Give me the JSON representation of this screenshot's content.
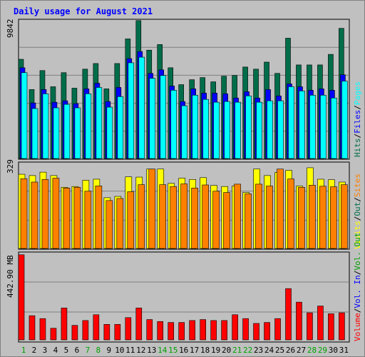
{
  "title": "Daily usage for August 2021",
  "colors": {
    "background": "#c0c0c0",
    "title": "#0000ff",
    "hits": "#006d4a",
    "files": "#0000ff",
    "pages": "#00ffff",
    "visits": "#ffff00",
    "sites": "#ff8000",
    "volume": "#ff0000",
    "volume_in": "#0000ff",
    "volume_out": "#00a000",
    "weekend_day": "#00a000",
    "weekday": "#000000",
    "legend_sep": "#000000"
  },
  "chart_data": [
    {
      "type": "bar",
      "title": "Daily usage for August 2021",
      "categories": [
        "1",
        "2",
        "3",
        "4",
        "5",
        "6",
        "7",
        "8",
        "9",
        "10",
        "11",
        "12",
        "13",
        "14",
        "15",
        "16",
        "17",
        "18",
        "19",
        "20",
        "21",
        "22",
        "23",
        "24",
        "25",
        "26",
        "27",
        "28",
        "29",
        "30",
        "31"
      ],
      "weekend_days": [
        "1",
        "7",
        "8",
        "14",
        "15",
        "21",
        "22",
        "28",
        "29"
      ],
      "y_tick_label": "9842",
      "ylim": [
        0,
        9842
      ],
      "series": [
        {
          "name": "Hits",
          "values": [
            7050,
            4900,
            6250,
            5100,
            6100,
            5000,
            6350,
            6750,
            4950,
            6750,
            8500,
            9800,
            7700,
            8100,
            6450,
            5250,
            5600,
            5750,
            5450,
            5850,
            5900,
            6500,
            6350,
            6850,
            6050,
            8550,
            6650,
            6650,
            6650,
            7400,
            9250
          ]
        },
        {
          "name": "Files",
          "values": [
            6450,
            3950,
            4900,
            4000,
            4100,
            3900,
            4950,
            5350,
            4050,
            5050,
            7100,
            7600,
            6050,
            6300,
            5150,
            4050,
            4950,
            4650,
            4650,
            4600,
            4300,
            4750,
            4300,
            4900,
            4450,
            5300,
            5100,
            4850,
            4950,
            4850,
            5950
          ]
        },
        {
          "name": "Pages",
          "values": [
            6100,
            3550,
            4600,
            3600,
            3850,
            3600,
            4600,
            5050,
            3650,
            4400,
            6800,
            7200,
            5700,
            5900,
            4850,
            3750,
            4500,
            4200,
            4000,
            4050,
            4000,
            4450,
            4000,
            4100,
            4100,
            5100,
            4800,
            4500,
            4500,
            4300,
            5500
          ]
        }
      ]
    },
    {
      "type": "bar",
      "categories": [
        "1",
        "2",
        "3",
        "4",
        "5",
        "6",
        "7",
        "8",
        "9",
        "10",
        "11",
        "12",
        "13",
        "14",
        "15",
        "16",
        "17",
        "18",
        "19",
        "20",
        "21",
        "22",
        "23",
        "24",
        "25",
        "26",
        "27",
        "28",
        "29",
        "30",
        "31"
      ],
      "y_tick_label": "329",
      "ylim": [
        0,
        329
      ],
      "series": [
        {
          "name": "Visits",
          "values": [
            285,
            280,
            293,
            280,
            235,
            238,
            262,
            266,
            195,
            200,
            275,
            274,
            305,
            305,
            250,
            270,
            265,
            272,
            242,
            238,
            240,
            215,
            305,
            280,
            292,
            300,
            240,
            310,
            266,
            264,
            255
          ]
        },
        {
          "name": "Sites",
          "values": [
            268,
            255,
            265,
            270,
            232,
            235,
            220,
            240,
            184,
            192,
            218,
            245,
            305,
            245,
            238,
            248,
            232,
            244,
            220,
            215,
            247,
            210,
            247,
            240,
            305,
            267,
            235,
            243,
            239,
            237,
            245
          ]
        }
      ]
    },
    {
      "type": "bar",
      "categories": [
        "1",
        "2",
        "3",
        "4",
        "5",
        "6",
        "7",
        "8",
        "9",
        "10",
        "11",
        "12",
        "13",
        "14",
        "15",
        "16",
        "17",
        "18",
        "19",
        "20",
        "21",
        "22",
        "23",
        "24",
        "25",
        "26",
        "27",
        "28",
        "29",
        "30",
        "31"
      ],
      "y_tick_label": "442.90 MB",
      "ylim": [
        0,
        442.9
      ],
      "series": [
        {
          "name": "Volume",
          "values": [
            440,
            125,
            110,
            60,
            165,
            75,
            100,
            130,
            80,
            80,
            115,
            165,
            105,
            95,
            90,
            90,
            100,
            105,
            100,
            100,
            130,
            110,
            85,
            90,
            110,
            265,
            195,
            140,
            175,
            135,
            140
          ]
        }
      ]
    }
  ],
  "legends": {
    "top": [
      "Hits",
      "Files",
      "Pages"
    ],
    "middle": [
      "Visits",
      "Out",
      "Sites"
    ],
    "bottom": [
      "Volume",
      "Vol. In",
      "Vol. Out"
    ]
  }
}
